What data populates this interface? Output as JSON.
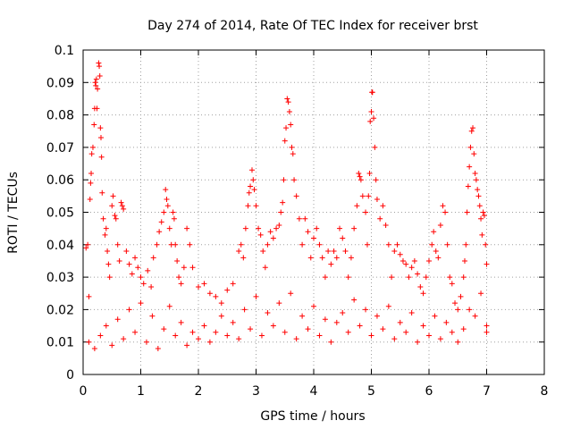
{
  "chart_data": {
    "type": "scatter",
    "title": "Day 274 of 2014, Rate Of TEC Index for receiver brst",
    "xlabel": "GPS time / hours",
    "ylabel": "ROTI / TECUs",
    "xlim": [
      0,
      8
    ],
    "ylim": [
      0,
      0.1
    ],
    "x_ticks": [
      "0",
      "1",
      "2",
      "3",
      "4",
      "5",
      "6",
      "7",
      "8"
    ],
    "y_ticks": [
      "0",
      "0.01",
      "0.02",
      "0.03",
      "0.04",
      "0.05",
      "0.06",
      "0.07",
      "0.08",
      "0.09",
      "0.1"
    ],
    "grid": true,
    "marker": "+",
    "marker_color": "#ff0000",
    "series": [
      {
        "name": "ROTI",
        "points": [
          [
            0.05,
            0.039
          ],
          [
            0.08,
            0.04
          ],
          [
            0.1,
            0.024
          ],
          [
            0.12,
            0.054
          ],
          [
            0.13,
            0.059
          ],
          [
            0.14,
            0.062
          ],
          [
            0.15,
            0.068
          ],
          [
            0.17,
            0.07
          ],
          [
            0.19,
            0.077
          ],
          [
            0.2,
            0.082
          ],
          [
            0.21,
            0.09
          ],
          [
            0.22,
            0.089
          ],
          [
            0.23,
            0.091
          ],
          [
            0.24,
            0.082
          ],
          [
            0.25,
            0.088
          ],
          [
            0.27,
            0.096
          ],
          [
            0.28,
            0.095
          ],
          [
            0.29,
            0.092
          ],
          [
            0.3,
            0.076
          ],
          [
            0.31,
            0.073
          ],
          [
            0.32,
            0.067
          ],
          [
            0.33,
            0.056
          ],
          [
            0.35,
            0.048
          ],
          [
            0.38,
            0.043
          ],
          [
            0.4,
            0.045
          ],
          [
            0.42,
            0.038
          ],
          [
            0.44,
            0.034
          ],
          [
            0.46,
            0.03
          ],
          [
            0.5,
            0.052
          ],
          [
            0.52,
            0.055
          ],
          [
            0.55,
            0.049
          ],
          [
            0.57,
            0.048
          ],
          [
            0.6,
            0.04
          ],
          [
            0.63,
            0.035
          ],
          [
            0.66,
            0.053
          ],
          [
            0.68,
            0.052
          ],
          [
            0.7,
            0.051
          ],
          [
            0.75,
            0.038
          ],
          [
            0.8,
            0.034
          ],
          [
            0.85,
            0.031
          ],
          [
            0.9,
            0.036
          ],
          [
            0.95,
            0.033
          ],
          [
            1.0,
            0.03
          ],
          [
            1.05,
            0.028
          ],
          [
            1.12,
            0.032
          ],
          [
            1.18,
            0.027
          ],
          [
            1.22,
            0.036
          ],
          [
            1.28,
            0.04
          ],
          [
            1.32,
            0.044
          ],
          [
            1.36,
            0.047
          ],
          [
            1.4,
            0.05
          ],
          [
            1.43,
            0.057
          ],
          [
            1.45,
            0.054
          ],
          [
            1.47,
            0.052
          ],
          [
            1.5,
            0.045
          ],
          [
            1.53,
            0.04
          ],
          [
            1.56,
            0.05
          ],
          [
            1.58,
            0.048
          ],
          [
            1.6,
            0.04
          ],
          [
            1.63,
            0.035
          ],
          [
            1.66,
            0.03
          ],
          [
            1.7,
            0.028
          ],
          [
            1.75,
            0.033
          ],
          [
            1.8,
            0.045
          ],
          [
            1.85,
            0.04
          ],
          [
            1.9,
            0.033
          ],
          [
            2.0,
            0.027
          ],
          [
            2.1,
            0.028
          ],
          [
            2.2,
            0.025
          ],
          [
            2.3,
            0.024
          ],
          [
            2.4,
            0.022
          ],
          [
            2.5,
            0.026
          ],
          [
            2.6,
            0.028
          ],
          [
            2.7,
            0.038
          ],
          [
            2.74,
            0.04
          ],
          [
            2.78,
            0.036
          ],
          [
            2.82,
            0.045
          ],
          [
            2.86,
            0.052
          ],
          [
            2.88,
            0.056
          ],
          [
            2.9,
            0.058
          ],
          [
            2.93,
            0.063
          ],
          [
            2.95,
            0.06
          ],
          [
            2.97,
            0.057
          ],
          [
            3.0,
            0.052
          ],
          [
            3.04,
            0.045
          ],
          [
            3.08,
            0.043
          ],
          [
            3.12,
            0.038
          ],
          [
            3.16,
            0.033
          ],
          [
            3.2,
            0.04
          ],
          [
            3.25,
            0.044
          ],
          [
            3.3,
            0.042
          ],
          [
            3.35,
            0.045
          ],
          [
            3.4,
            0.046
          ],
          [
            3.43,
            0.05
          ],
          [
            3.46,
            0.053
          ],
          [
            3.48,
            0.06
          ],
          [
            3.5,
            0.072
          ],
          [
            3.52,
            0.076
          ],
          [
            3.54,
            0.085
          ],
          [
            3.56,
            0.084
          ],
          [
            3.58,
            0.081
          ],
          [
            3.6,
            0.077
          ],
          [
            3.62,
            0.07
          ],
          [
            3.64,
            0.068
          ],
          [
            3.66,
            0.06
          ],
          [
            3.7,
            0.055
          ],
          [
            3.75,
            0.048
          ],
          [
            3.8,
            0.04
          ],
          [
            3.85,
            0.048
          ],
          [
            3.9,
            0.044
          ],
          [
            3.95,
            0.036
          ],
          [
            4.0,
            0.042
          ],
          [
            4.05,
            0.045
          ],
          [
            4.1,
            0.04
          ],
          [
            4.15,
            0.036
          ],
          [
            4.2,
            0.03
          ],
          [
            4.25,
            0.038
          ],
          [
            4.3,
            0.034
          ],
          [
            4.35,
            0.038
          ],
          [
            4.4,
            0.036
          ],
          [
            4.45,
            0.045
          ],
          [
            4.5,
            0.042
          ],
          [
            4.55,
            0.038
          ],
          [
            4.6,
            0.03
          ],
          [
            4.65,
            0.036
          ],
          [
            4.7,
            0.045
          ],
          [
            4.75,
            0.052
          ],
          [
            4.78,
            0.062
          ],
          [
            4.8,
            0.061
          ],
          [
            4.82,
            0.06
          ],
          [
            4.85,
            0.055
          ],
          [
            4.9,
            0.05
          ],
          [
            4.93,
            0.04
          ],
          [
            4.95,
            0.055
          ],
          [
            4.97,
            0.062
          ],
          [
            4.98,
            0.078
          ],
          [
            5.0,
            0.081
          ],
          [
            5.01,
            0.087
          ],
          [
            5.02,
            0.087
          ],
          [
            5.04,
            0.079
          ],
          [
            5.06,
            0.07
          ],
          [
            5.08,
            0.06
          ],
          [
            5.1,
            0.054
          ],
          [
            5.15,
            0.048
          ],
          [
            5.2,
            0.052
          ],
          [
            5.25,
            0.046
          ],
          [
            5.3,
            0.04
          ],
          [
            5.35,
            0.03
          ],
          [
            5.4,
            0.038
          ],
          [
            5.45,
            0.04
          ],
          [
            5.5,
            0.037
          ],
          [
            5.55,
            0.035
          ],
          [
            5.6,
            0.034
          ],
          [
            5.65,
            0.03
          ],
          [
            5.7,
            0.033
          ],
          [
            5.75,
            0.035
          ],
          [
            5.8,
            0.031
          ],
          [
            5.85,
            0.027
          ],
          [
            5.9,
            0.025
          ],
          [
            5.95,
            0.03
          ],
          [
            6.0,
            0.035
          ],
          [
            6.05,
            0.04
          ],
          [
            6.08,
            0.044
          ],
          [
            6.12,
            0.038
          ],
          [
            6.16,
            0.036
          ],
          [
            6.2,
            0.046
          ],
          [
            6.24,
            0.052
          ],
          [
            6.28,
            0.05
          ],
          [
            6.32,
            0.04
          ],
          [
            6.36,
            0.03
          ],
          [
            6.4,
            0.028
          ],
          [
            6.45,
            0.022
          ],
          [
            6.5,
            0.02
          ],
          [
            6.55,
            0.024
          ],
          [
            6.6,
            0.03
          ],
          [
            6.62,
            0.035
          ],
          [
            6.64,
            0.04
          ],
          [
            6.66,
            0.05
          ],
          [
            6.68,
            0.058
          ],
          [
            6.7,
            0.064
          ],
          [
            6.72,
            0.07
          ],
          [
            6.74,
            0.075
          ],
          [
            6.76,
            0.076
          ],
          [
            6.78,
            0.068
          ],
          [
            6.8,
            0.062
          ],
          [
            6.82,
            0.06
          ],
          [
            6.84,
            0.057
          ],
          [
            6.86,
            0.055
          ],
          [
            6.88,
            0.052
          ],
          [
            6.9,
            0.048
          ],
          [
            6.92,
            0.043
          ],
          [
            6.94,
            0.05
          ],
          [
            6.96,
            0.049
          ],
          [
            6.98,
            0.04
          ],
          [
            7.0,
            0.034
          ],
          [
            7.0,
            0.013
          ],
          [
            0.1,
            0.01
          ],
          [
            0.2,
            0.008
          ],
          [
            0.3,
            0.012
          ],
          [
            0.4,
            0.015
          ],
          [
            0.5,
            0.009
          ],
          [
            0.6,
            0.017
          ],
          [
            0.7,
            0.011
          ],
          [
            0.8,
            0.02
          ],
          [
            0.9,
            0.013
          ],
          [
            1.0,
            0.022
          ],
          [
            1.1,
            0.01
          ],
          [
            1.2,
            0.018
          ],
          [
            1.3,
            0.008
          ],
          [
            1.4,
            0.014
          ],
          [
            1.5,
            0.021
          ],
          [
            1.6,
            0.012
          ],
          [
            1.7,
            0.016
          ],
          [
            1.8,
            0.009
          ],
          [
            1.9,
            0.013
          ],
          [
            2.0,
            0.011
          ],
          [
            2.1,
            0.015
          ],
          [
            2.2,
            0.01
          ],
          [
            2.3,
            0.013
          ],
          [
            2.4,
            0.018
          ],
          [
            2.5,
            0.012
          ],
          [
            2.6,
            0.016
          ],
          [
            2.7,
            0.011
          ],
          [
            2.8,
            0.02
          ],
          [
            2.9,
            0.014
          ],
          [
            3.0,
            0.024
          ],
          [
            3.1,
            0.012
          ],
          [
            3.2,
            0.019
          ],
          [
            3.3,
            0.015
          ],
          [
            3.4,
            0.022
          ],
          [
            3.5,
            0.013
          ],
          [
            3.6,
            0.025
          ],
          [
            3.7,
            0.011
          ],
          [
            3.8,
            0.018
          ],
          [
            3.9,
            0.014
          ],
          [
            4.0,
            0.021
          ],
          [
            4.1,
            0.012
          ],
          [
            4.2,
            0.017
          ],
          [
            4.3,
            0.01
          ],
          [
            4.4,
            0.016
          ],
          [
            4.5,
            0.019
          ],
          [
            4.6,
            0.013
          ],
          [
            4.7,
            0.023
          ],
          [
            4.8,
            0.015
          ],
          [
            4.9,
            0.02
          ],
          [
            5.0,
            0.012
          ],
          [
            5.1,
            0.018
          ],
          [
            5.2,
            0.014
          ],
          [
            5.3,
            0.021
          ],
          [
            5.4,
            0.011
          ],
          [
            5.5,
            0.016
          ],
          [
            5.6,
            0.013
          ],
          [
            5.7,
            0.019
          ],
          [
            5.8,
            0.01
          ],
          [
            5.9,
            0.015
          ],
          [
            6.0,
            0.012
          ],
          [
            6.1,
            0.018
          ],
          [
            6.2,
            0.011
          ],
          [
            6.3,
            0.016
          ],
          [
            6.4,
            0.013
          ],
          [
            6.5,
            0.01
          ],
          [
            6.6,
            0.014
          ],
          [
            6.7,
            0.02
          ],
          [
            6.8,
            0.018
          ],
          [
            6.9,
            0.025
          ],
          [
            7.0,
            0.015
          ]
        ]
      }
    ]
  }
}
